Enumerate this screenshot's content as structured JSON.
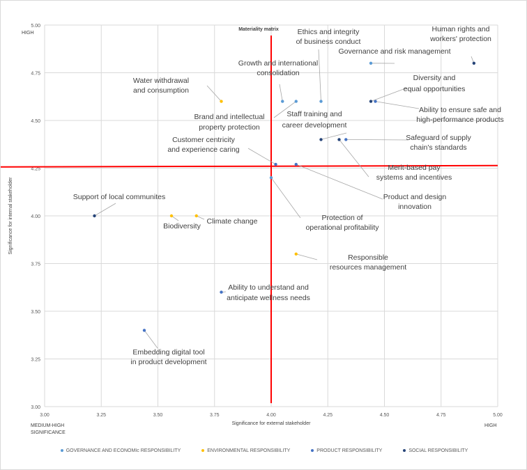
{
  "chart_data": {
    "type": "scatter",
    "title": "Materiality matrix",
    "xlabel": "Significance for external stakeholder",
    "ylabel": "Significance for internal stakeholder",
    "xlim": [
      3.0,
      5.0
    ],
    "ylim": [
      3.0,
      5.0
    ],
    "xticks": [
      "3.00",
      "3.25",
      "3.50",
      "3.75",
      "4.00",
      "4.25",
      "4.50",
      "4.75",
      "5.00"
    ],
    "yticks": [
      "3.00",
      "3.25",
      "3.50",
      "3.75",
      "4.00",
      "4.25",
      "4.50",
      "4.75",
      "5.00"
    ],
    "grid": true,
    "x_low_label": "MEDIUM-HIGH SIGNIFICANCE",
    "x_high_label": "HIGH",
    "y_high_label": "HIGH",
    "threshold_lines": {
      "x": 4.0,
      "y": 4.26,
      "color": "#ff0000"
    },
    "legend_position": "bottom",
    "series": [
      {
        "name": "GOVERNANCE AND ECONOMIc RESPONSIBILITY",
        "color": "#5b9bd5",
        "points": [
          {
            "x": 4.44,
            "y": 4.8,
            "label": "Governance and risk management"
          },
          {
            "x": 4.22,
            "y": 4.6,
            "label": "Ethics and integrity of business conduct"
          },
          {
            "x": 4.11,
            "y": 4.6,
            "label": "Brand and intellectual property protection"
          },
          {
            "x": 4.05,
            "y": 4.6,
            "label": "Growth and international consolidation"
          },
          {
            "x": 4.0,
            "y": 4.2,
            "label": "Protection of operational profitability"
          }
        ]
      },
      {
        "name": "ENVIRONMENTAL RESPONSIBILITY",
        "color": "#ffc000",
        "points": [
          {
            "x": 3.78,
            "y": 4.6,
            "label": "Water withdrawal and consumption"
          },
          {
            "x": 3.56,
            "y": 4.0,
            "label": "Biodiversity"
          },
          {
            "x": 3.67,
            "y": 4.0,
            "label": "Climate change"
          },
          {
            "x": 4.11,
            "y": 3.8,
            "label": "Responsible resources management"
          }
        ]
      },
      {
        "name": "PRODUCT RESPONSIBILITY",
        "color": "#4472c4",
        "points": [
          {
            "x": 4.46,
            "y": 4.6,
            "label": "Ability to ensure safe and high-performance products"
          },
          {
            "x": 4.33,
            "y": 4.4,
            "label": "Safeguard of supply chain's standards"
          },
          {
            "x": 4.02,
            "y": 4.27,
            "label": "Customer centricity and experience caring"
          },
          {
            "x": 4.11,
            "y": 4.27,
            "label": "Product and design innovation"
          },
          {
            "x": 3.78,
            "y": 3.6,
            "label": "Ability to understand and anticipate wellness needs"
          },
          {
            "x": 3.44,
            "y": 3.4,
            "label": "Embedding digital tool in product development"
          }
        ]
      },
      {
        "name": "SOCIAL RESPONSIBILITY",
        "color": "#264478",
        "points": [
          {
            "x": 4.895,
            "y": 4.8,
            "label": "Human rights and workers' protection"
          },
          {
            "x": 4.44,
            "y": 4.6,
            "label": "Diversity and equal opportunities"
          },
          {
            "x": 4.22,
            "y": 4.4,
            "label": "Staff training and career development"
          },
          {
            "x": 4.3,
            "y": 4.4,
            "label": "Merit-based pay systems and incentives"
          },
          {
            "x": 3.22,
            "y": 4.0,
            "label": "Support of local communites"
          }
        ]
      }
    ]
  }
}
